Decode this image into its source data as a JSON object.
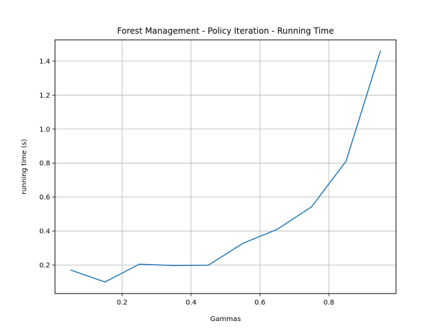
{
  "chart_data": {
    "type": "line",
    "title": "Forest Management - Policy Iteration - Running Time",
    "xlabel": "Gammas",
    "ylabel": "running time (s)",
    "xlim": [
      0.005,
      0.995
    ],
    "ylim": [
      0.032,
      1.525
    ],
    "xticks": [
      0.2,
      0.4,
      0.6,
      0.8
    ],
    "xtick_labels": [
      "0.2",
      "0.4",
      "0.6",
      "0.8"
    ],
    "yticks": [
      0.2,
      0.4,
      0.6,
      0.8,
      1.0,
      1.2,
      1.4
    ],
    "ytick_labels": [
      "0.2",
      "0.4",
      "0.6",
      "0.8",
      "1.0",
      "1.2",
      "1.4"
    ],
    "grid": true,
    "series": [
      {
        "color": "#1f77b4",
        "x": [
          0.05,
          0.15,
          0.25,
          0.35,
          0.45,
          0.55,
          0.65,
          0.75,
          0.85,
          0.95
        ],
        "y": [
          0.171,
          0.1,
          0.205,
          0.197,
          0.199,
          0.327,
          0.41,
          0.543,
          0.811,
          1.461
        ]
      }
    ]
  }
}
